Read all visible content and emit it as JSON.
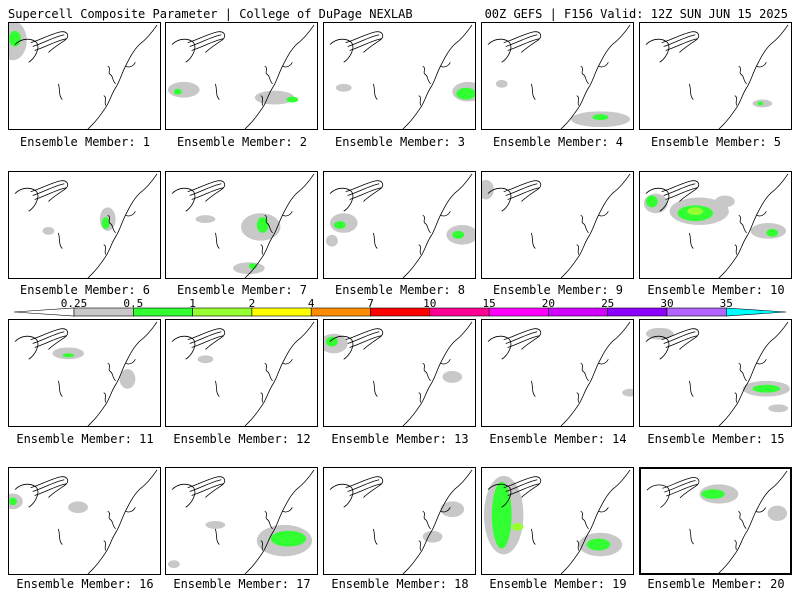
{
  "header": {
    "left": "Supercell Composite Parameter | College of DuPage NEXLAB",
    "right": "00Z GEFS | F156 Valid: 12Z SUN JUN 15 2025"
  },
  "colorbar": {
    "labels": [
      "0.25",
      "0.5",
      "1",
      "2",
      "4",
      "7",
      "10",
      "15",
      "20",
      "25",
      "30",
      "35"
    ],
    "colors": [
      "#ffffff",
      "#c8c8c8",
      "#32ff32",
      "#96ff32",
      "#ffff00",
      "#ff8c00",
      "#ff0000",
      "#ff0096",
      "#ff00ff",
      "#d200ff",
      "#8c00ff",
      "#b464ff",
      "#00ffff"
    ]
  },
  "members": [
    {
      "label": "Ensemble Member: 1"
    },
    {
      "label": "Ensemble Member: 2"
    },
    {
      "label": "Ensemble Member: 3"
    },
    {
      "label": "Ensemble Member: 4"
    },
    {
      "label": "Ensemble Member: 5"
    },
    {
      "label": "Ensemble Member: 6"
    },
    {
      "label": "Ensemble Member: 7"
    },
    {
      "label": "Ensemble Member: 8"
    },
    {
      "label": "Ensemble Member: 9"
    },
    {
      "label": "Ensemble Member: 10"
    },
    {
      "label": "Ensemble Member: 11"
    },
    {
      "label": "Ensemble Member: 12"
    },
    {
      "label": "Ensemble Member: 13"
    },
    {
      "label": "Ensemble Member: 14"
    },
    {
      "label": "Ensemble Member: 15"
    },
    {
      "label": "Ensemble Member: 16"
    },
    {
      "label": "Ensemble Member: 17"
    },
    {
      "label": "Ensemble Member: 18"
    },
    {
      "label": "Ensemble Member: 19"
    },
    {
      "label": "Ensemble Member: 20"
    }
  ]
}
